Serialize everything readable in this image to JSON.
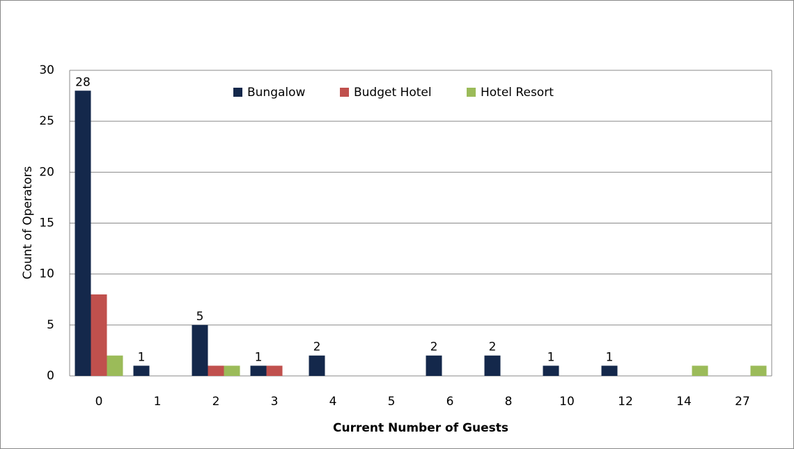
{
  "chart_data": {
    "type": "bar",
    "x_label": "Current Number of Guests",
    "y_label": "Count of Operators",
    "categories": [
      "0",
      "1",
      "2",
      "3",
      "4",
      "5",
      "6",
      "8",
      "10",
      "12",
      "14",
      "27"
    ],
    "series": [
      {
        "name": "Bungalow",
        "color": "#14284b",
        "labels": true,
        "values": [
          28,
          1,
          5,
          1,
          2,
          null,
          2,
          2,
          1,
          1,
          null,
          null
        ]
      },
      {
        "name": "Budget Hotel",
        "color": "#c0504d",
        "values": [
          8,
          null,
          1,
          1,
          null,
          null,
          null,
          null,
          null,
          null,
          null,
          null
        ]
      },
      {
        "name": "Hotel Resort",
        "color": "#9bbb59",
        "values": [
          2,
          null,
          1,
          null,
          null,
          null,
          null,
          null,
          null,
          null,
          1,
          1
        ]
      }
    ],
    "ylim": [
      0,
      30
    ],
    "yticks": [
      0,
      5,
      10,
      15,
      20,
      25,
      30
    ],
    "grid": true,
    "legend": "top"
  }
}
